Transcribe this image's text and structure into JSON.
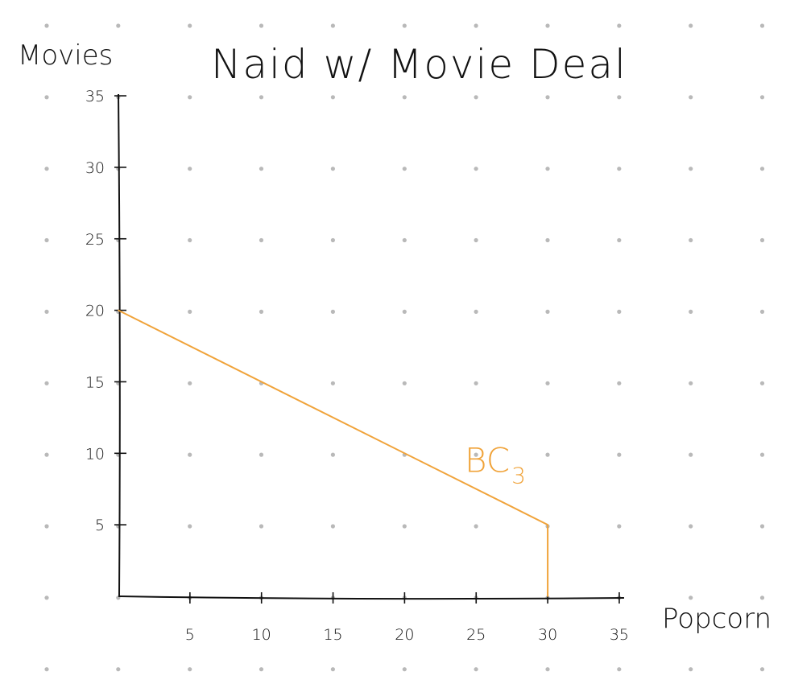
{
  "chart_data": {
    "type": "line",
    "title": "Naid w/ Movie Deal",
    "xlabel": "Popcorn",
    "ylabel": "Movies",
    "xlim": [
      0,
      35
    ],
    "ylim": [
      0,
      35
    ],
    "x_ticks": [
      5,
      10,
      15,
      20,
      25,
      30,
      35
    ],
    "y_ticks": [
      5,
      10,
      15,
      20,
      25,
      30,
      35
    ],
    "grid": "dots",
    "series": [
      {
        "name": "BC",
        "name_subscript": "3",
        "color": "#f0a33a",
        "points": [
          {
            "x": 0,
            "y": 20
          },
          {
            "x": 30,
            "y": 5
          },
          {
            "x": 30,
            "y": 0
          }
        ]
      }
    ]
  }
}
